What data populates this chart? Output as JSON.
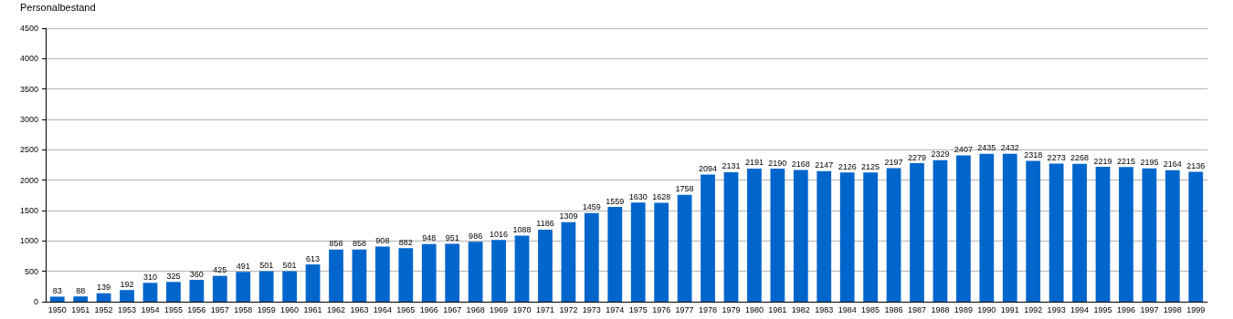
{
  "chart_data": {
    "type": "bar",
    "ylabel": "Personalbestand",
    "categories": [
      "1950",
      "1951",
      "1952",
      "1953",
      "1954",
      "1955",
      "1956",
      "1957",
      "1958",
      "1959",
      "1960",
      "1961",
      "1962",
      "1963",
      "1964",
      "1965",
      "1966",
      "1967",
      "1968",
      "1969",
      "1970",
      "1971",
      "1972",
      "1973",
      "1974",
      "1975",
      "1976",
      "1977",
      "1978",
      "1979",
      "1980",
      "1981",
      "1982",
      "1983",
      "1984",
      "1985",
      "1986",
      "1987",
      "1988",
      "1989",
      "1990",
      "1991",
      "1992",
      "1993",
      "1994",
      "1995",
      "1996",
      "1997",
      "1998",
      "1999"
    ],
    "values": [
      83,
      88,
      139,
      192,
      310,
      325,
      360,
      425,
      491,
      501,
      501,
      613,
      858,
      858,
      908,
      882,
      948,
      951,
      986,
      1016,
      1088,
      1186,
      1309,
      1459,
      1559,
      1630,
      1628,
      1758,
      2094,
      2131,
      2191,
      2190,
      2168,
      2147,
      2126,
      2125,
      2197,
      2279,
      2329,
      2407,
      2435,
      2432,
      2318,
      2273,
      2268,
      2219,
      2215,
      2195,
      2164,
      2136
    ],
    "color": "#0066cc",
    "ylim": [
      0,
      4500
    ],
    "yticks": [
      0,
      500,
      1000,
      1500,
      2000,
      2500,
      3000,
      3500,
      4000,
      4500
    ],
    "grid": "y",
    "data_labels": true
  }
}
